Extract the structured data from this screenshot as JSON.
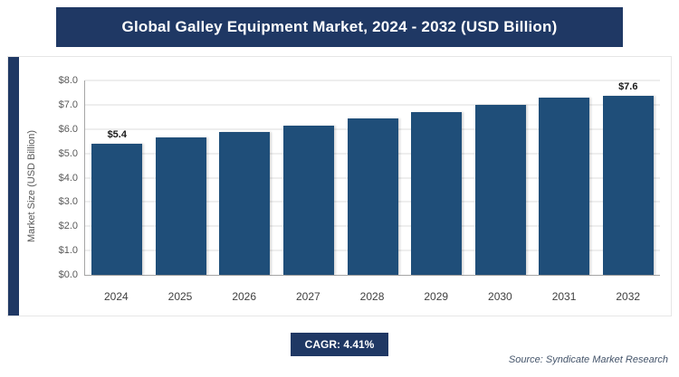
{
  "chart_data": {
    "type": "bar",
    "title": "Global Galley Equipment Market, 2024 - 2032 (USD Billion)",
    "categories": [
      "2024",
      "2025",
      "2026",
      "2027",
      "2028",
      "2029",
      "2030",
      "2031",
      "2032"
    ],
    "values": [
      5.4,
      5.64,
      5.88,
      6.14,
      6.42,
      6.7,
      7.0,
      7.3,
      7.6
    ],
    "data_labels": [
      "$5.4",
      "",
      "",
      "",
      "",
      "",
      "",
      "",
      "$7.6"
    ],
    "xlabel": "",
    "ylabel": "Market Size (USD Billion)",
    "ylim": [
      0,
      8
    ],
    "ytick_step": 1,
    "ytick_labels": [
      "$0.0",
      "$1.0",
      "$2.0",
      "$3.0",
      "$4.0",
      "$5.0",
      "$6.0",
      "$7.0",
      "$8.0"
    ],
    "grid": true,
    "legend": "none",
    "bar_color": "#1F4E79"
  },
  "footer": {
    "cagr_label": "CAGR: 4.41%",
    "source": "Source: Syndicate Market Research"
  },
  "colors": {
    "navy_header": "#1F3864",
    "bar": "#1F4E79",
    "grid": "#DCDCDC",
    "axis": "#A6A6A6",
    "tick_text": "#595959",
    "source_text": "#44546A"
  }
}
